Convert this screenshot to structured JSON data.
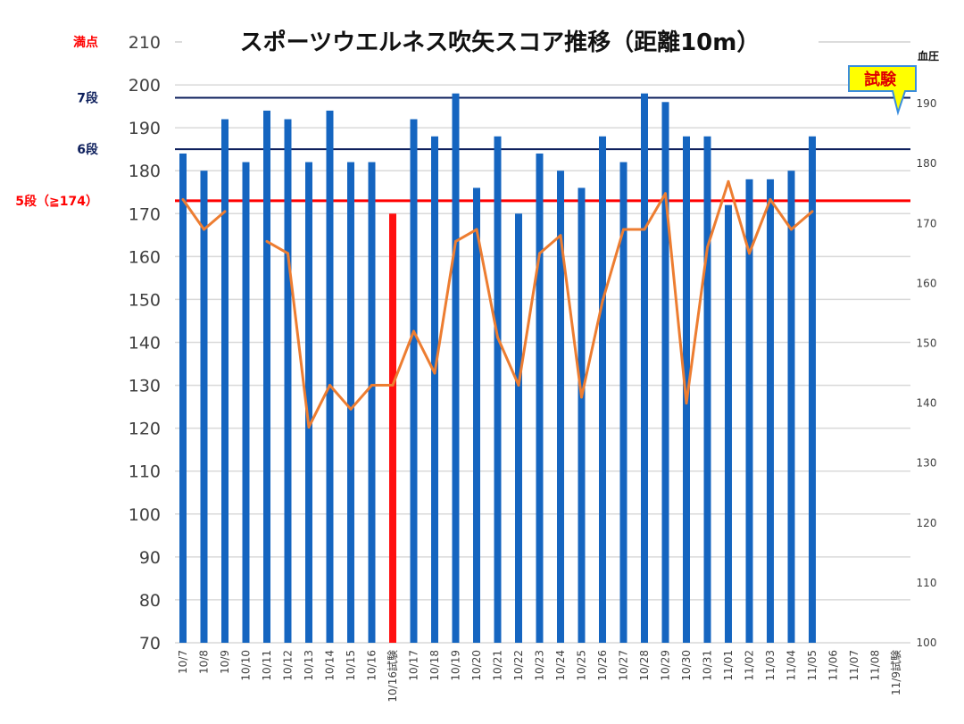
{
  "chart_data": {
    "type": "bar",
    "title": "スポーツウエルネス吹矢スコア推移（距離10m）",
    "categories": [
      "10/7",
      "10/8",
      "10/9",
      "10/10",
      "10/11",
      "10/12",
      "10/13",
      "10/14",
      "10/15",
      "10/16",
      "10/16試験",
      "10/17",
      "10/18",
      "10/19",
      "10/20",
      "10/21",
      "10/22",
      "10/23",
      "10/24",
      "10/25",
      "10/26",
      "10/27",
      "10/28",
      "10/29",
      "10/30",
      "10/31",
      "11/01",
      "11/02",
      "11/03",
      "11/04",
      "11/05",
      "11/06",
      "11/07",
      "11/08",
      "11/9試験"
    ],
    "ylim": [
      70,
      210
    ],
    "yticks": [
      70,
      80,
      90,
      100,
      110,
      120,
      130,
      140,
      150,
      160,
      170,
      180,
      190,
      200,
      210
    ],
    "y2label": "血圧",
    "y2lim": [
      100,
      200
    ],
    "y2ticks": [
      100,
      110,
      120,
      130,
      140,
      150,
      160,
      170,
      180,
      190
    ],
    "series": [
      {
        "type": "bar",
        "axis": "left",
        "color": "#1565c0",
        "highlight_color": "#ff1010",
        "highlight_index": 10,
        "values": [
          184,
          180,
          192,
          182,
          194,
          192,
          182,
          194,
          182,
          182,
          170,
          192,
          188,
          198,
          176,
          188,
          170,
          184,
          180,
          176,
          188,
          182,
          198,
          196,
          188,
          188,
          172,
          178,
          178,
          180,
          188,
          null,
          null,
          null,
          null
        ]
      },
      {
        "type": "line",
        "axis": "right",
        "color": "#ed7d31",
        "values": [
          174,
          169,
          172,
          null,
          167,
          165,
          136,
          143,
          139,
          143,
          143,
          152,
          145,
          167,
          169,
          151,
          143,
          165,
          168,
          141,
          157,
          169,
          169,
          175,
          140,
          166,
          177,
          165,
          174,
          169,
          172,
          null,
          null,
          null,
          null
        ]
      }
    ],
    "reference_lines": [
      {
        "label": "満点",
        "value": 210,
        "color": "#ff0000",
        "line": false
      },
      {
        "label": "7段",
        "value": 197,
        "color": "#0d1f5c",
        "line": true
      },
      {
        "label": "6段",
        "value": 185,
        "color": "#0d1f5c",
        "line": true
      },
      {
        "label": "5段（≧174）",
        "value": 173,
        "color": "#ff0000",
        "line": true
      }
    ],
    "callout": {
      "text": "試験",
      "bg": "#ffff00",
      "border": "#3a8dde"
    },
    "grid": true,
    "legend": "none"
  }
}
